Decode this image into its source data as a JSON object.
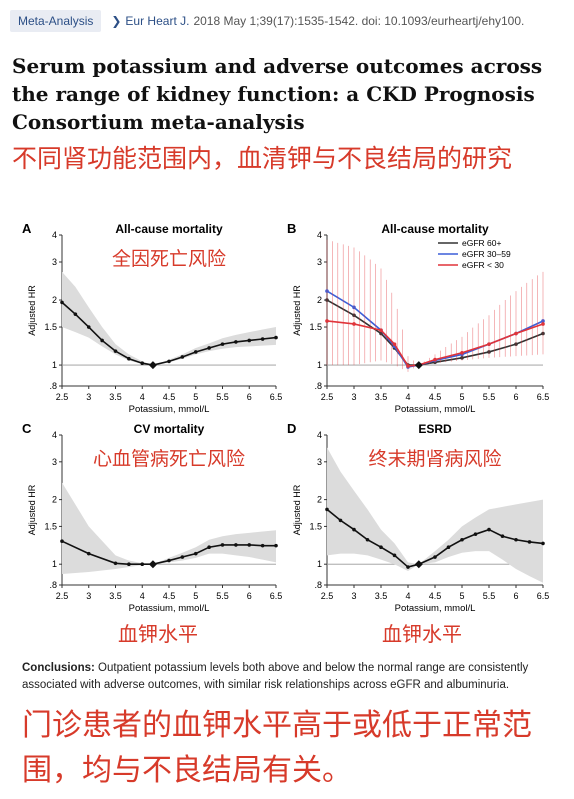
{
  "header": {
    "tag": "Meta-Analysis",
    "journal": "Eur Heart J.",
    "citation": "2018 May 1;39(17):1535-1542. doi: 10.1093/eurheartj/ehy100."
  },
  "title": "Serum potassium and adverse outcomes across the range of kidney function: a CKD Prognosis Consortium meta-analysis",
  "title_cn": "不同肾功能范围内，血清钾与不良结局的研究",
  "chart_data": [
    {
      "type": "line",
      "panel_label": "A",
      "title": "All-cause mortality",
      "annotation_cn": "全因死亡风险",
      "xlabel": "Potassium, mmol/L",
      "ylabel": "Adjusted HR",
      "xlim": [
        2.5,
        6.5
      ],
      "ylim": [
        0.8,
        4.0
      ],
      "y_scale": "log",
      "xticks": [
        "2.5",
        "3",
        "3.5",
        "4",
        "4.5",
        "5",
        "5.5",
        "6",
        "6.5"
      ],
      "yticks": [
        ".8",
        "1",
        "1.5",
        "2",
        "3",
        "4"
      ],
      "reference": 4.2,
      "series": [
        {
          "x": [
            2.5,
            2.75,
            3.0,
            3.25,
            3.5,
            3.75,
            4.0,
            4.2,
            4.5,
            4.75,
            5.0,
            5.25,
            5.5,
            5.75,
            6.0,
            6.25,
            6.5
          ],
          "y": [
            1.95,
            1.72,
            1.5,
            1.3,
            1.16,
            1.07,
            1.02,
            1.0,
            1.04,
            1.09,
            1.15,
            1.2,
            1.25,
            1.28,
            1.3,
            1.32,
            1.34
          ],
          "lower": [
            1.5,
            1.42,
            1.34,
            1.22,
            1.12,
            1.05,
            1.01,
            1.0,
            1.03,
            1.07,
            1.12,
            1.16,
            1.19,
            1.21,
            1.22,
            1.23,
            1.24
          ],
          "upper": [
            2.7,
            2.3,
            1.85,
            1.5,
            1.25,
            1.12,
            1.04,
            1.0,
            1.06,
            1.12,
            1.2,
            1.26,
            1.33,
            1.38,
            1.42,
            1.46,
            1.5
          ]
        }
      ]
    },
    {
      "type": "line",
      "panel_label": "B",
      "title": "All-cause mortality",
      "xlabel": "Potassium, mmol/L",
      "ylabel": "Adjusted HR",
      "xlim": [
        2.5,
        6.5
      ],
      "ylim": [
        0.8,
        4.0
      ],
      "y_scale": "log",
      "xticks": [
        "2.5",
        "3",
        "3.5",
        "4",
        "4.5",
        "5",
        "5.5",
        "6",
        "6.5"
      ],
      "yticks": [
        ".8",
        "1",
        "1.5",
        "2",
        "3",
        "4"
      ],
      "reference": 4.2,
      "legend_position": "top-right",
      "series": [
        {
          "name": "eGFR 60+",
          "color": "#333333",
          "x": [
            2.5,
            3.0,
            3.5,
            3.75,
            4.0,
            4.2,
            4.5,
            5.0,
            5.5,
            6.0,
            6.5
          ],
          "y": [
            2.0,
            1.7,
            1.4,
            1.2,
            1.0,
            1.0,
            1.03,
            1.08,
            1.15,
            1.25,
            1.4
          ]
        },
        {
          "name": "eGFR 30–59",
          "color": "#3b5fd9",
          "x": [
            2.5,
            3.0,
            3.5,
            3.75,
            4.0,
            4.2,
            4.5,
            5.0,
            5.5,
            6.0,
            6.5
          ],
          "y": [
            2.2,
            1.85,
            1.45,
            1.22,
            0.98,
            1.0,
            1.05,
            1.12,
            1.25,
            1.4,
            1.6
          ]
        },
        {
          "name": "eGFR < 30",
          "color": "#e0343a",
          "x": [
            2.5,
            3.0,
            3.5,
            3.75,
            4.0,
            4.2,
            4.5,
            5.0,
            5.5,
            6.0,
            6.5
          ],
          "y": [
            1.6,
            1.55,
            1.45,
            1.25,
            0.99,
            1.0,
            1.06,
            1.14,
            1.25,
            1.4,
            1.55
          ],
          "lower": [
            1.0,
            1.0,
            1.05,
            1.0,
            0.93,
            1.0,
            1.02,
            1.05,
            1.08,
            1.1,
            1.12
          ],
          "upper": [
            3.8,
            3.5,
            2.8,
            2.0,
            1.1,
            1.0,
            1.12,
            1.35,
            1.7,
            2.2,
            2.7
          ]
        }
      ]
    },
    {
      "type": "line",
      "panel_label": "C",
      "title": "CV mortality",
      "annotation_cn": "心血管病死亡风险",
      "xlabel": "Potassium, mmol/L",
      "ylabel": "Adjusted HR",
      "xlim": [
        2.5,
        6.5
      ],
      "ylim": [
        0.8,
        4.0
      ],
      "y_scale": "log",
      "xticks": [
        "2.5",
        "3",
        "3.5",
        "4",
        "4.5",
        "5",
        "5.5",
        "6",
        "6.5"
      ],
      "yticks": [
        ".8",
        "1",
        "1.5",
        "2",
        "3",
        "4"
      ],
      "reference": 4.2,
      "series": [
        {
          "x": [
            2.5,
            3.0,
            3.5,
            3.75,
            4.0,
            4.2,
            4.5,
            4.75,
            5.0,
            5.25,
            5.5,
            5.75,
            6.0,
            6.25,
            6.5
          ],
          "y": [
            1.28,
            1.12,
            1.01,
            1.0,
            1.0,
            1.0,
            1.04,
            1.08,
            1.12,
            1.2,
            1.23,
            1.23,
            1.23,
            1.22,
            1.22
          ],
          "lower": [
            0.9,
            0.92,
            0.95,
            0.97,
            0.99,
            1.0,
            1.02,
            1.04,
            1.07,
            1.12,
            1.12,
            1.1,
            1.08,
            1.05,
            1.02
          ],
          "upper": [
            2.4,
            1.5,
            1.1,
            1.04,
            1.01,
            1.0,
            1.07,
            1.13,
            1.2,
            1.3,
            1.35,
            1.38,
            1.4,
            1.42,
            1.44
          ]
        }
      ]
    },
    {
      "type": "line",
      "panel_label": "D",
      "title": "ESRD",
      "annotation_cn": "终末期肾病风险",
      "xlabel": "Potassium, mmol/L",
      "ylabel": "Adjusted HR",
      "xlim": [
        2.5,
        6.5
      ],
      "ylim": [
        0.8,
        4.0
      ],
      "y_scale": "log",
      "xticks": [
        "2.5",
        "3",
        "3.5",
        "4",
        "4.5",
        "5",
        "5.5",
        "6",
        "6.5"
      ],
      "yticks": [
        ".8",
        "1",
        "1.5",
        "2",
        "3",
        "4"
      ],
      "reference": 4.2,
      "series": [
        {
          "x": [
            2.5,
            2.75,
            3.0,
            3.25,
            3.5,
            3.75,
            4.0,
            4.2,
            4.5,
            4.75,
            5.0,
            5.25,
            5.5,
            5.75,
            6.0,
            6.25,
            6.5
          ],
          "y": [
            1.8,
            1.6,
            1.45,
            1.3,
            1.2,
            1.1,
            0.97,
            1.0,
            1.08,
            1.2,
            1.3,
            1.38,
            1.45,
            1.35,
            1.3,
            1.27,
            1.25
          ],
          "lower": [
            1.1,
            1.12,
            1.12,
            1.1,
            1.05,
            1.0,
            0.93,
            1.0,
            1.02,
            1.08,
            1.13,
            1.15,
            1.15,
            1.05,
            0.95,
            0.88,
            0.82
          ],
          "upper": [
            3.5,
            2.7,
            2.2,
            1.8,
            1.45,
            1.25,
            1.02,
            1.0,
            1.15,
            1.3,
            1.5,
            1.65,
            1.8,
            1.85,
            1.9,
            1.95,
            2.0
          ]
        }
      ]
    }
  ],
  "annotation_x_cn": "血钾水平",
  "conclusions_label": "Conclusions:",
  "conclusions": "Outpatient potassium levels both above and below the normal range are consistently associated with adverse outcomes, with similar risk relationships across eGFR and albuminuria.",
  "conclusions_cn": "门诊患者的血钾水平高于或低于正常范围，均与不良结局有关。",
  "colors": {
    "accent_red": "#d73a2a",
    "link_blue": "#2c4f86",
    "band_gray": "#dcdcdc"
  }
}
